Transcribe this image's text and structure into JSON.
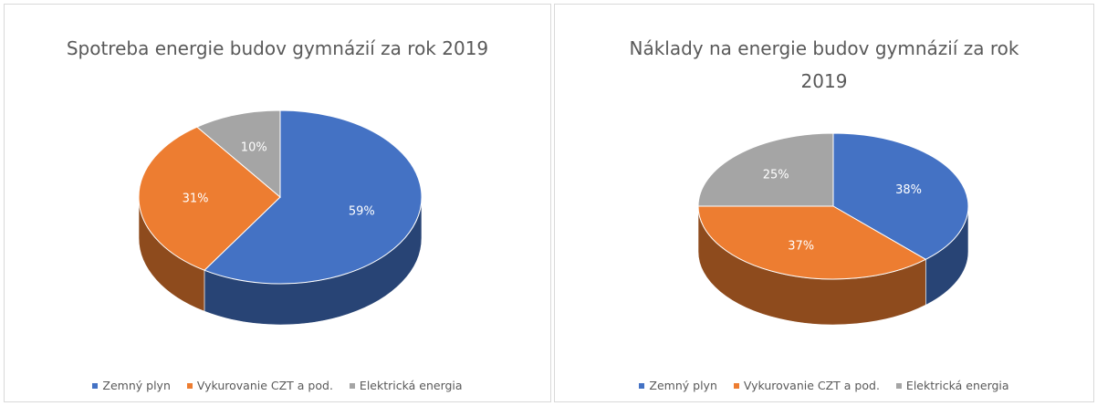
{
  "chart_data": [
    {
      "type": "pie",
      "title": "Spotreba energie budov gymnázií za rok 2019",
      "categories": [
        "Zemný plyn",
        "Vykurovanie CZT a pod.",
        "Elektrická energia"
      ],
      "values": [
        59,
        31,
        10
      ],
      "value_labels": [
        "59%",
        "31%",
        "10%"
      ],
      "colors": [
        "#4472c4",
        "#ed7d31",
        "#a5a5a5"
      ],
      "legend": "bottom"
    },
    {
      "type": "pie",
      "title": "Náklady na energie budov gymnázií za rok 2019",
      "categories": [
        "Zemný plyn",
        "Vykurovanie CZT a pod.",
        "Elektrická energia"
      ],
      "values": [
        38,
        37,
        25
      ],
      "value_labels": [
        "38%",
        "37%",
        "25%"
      ],
      "colors": [
        "#4472c4",
        "#ed7d31",
        "#a5a5a5"
      ],
      "legend": "bottom"
    }
  ]
}
